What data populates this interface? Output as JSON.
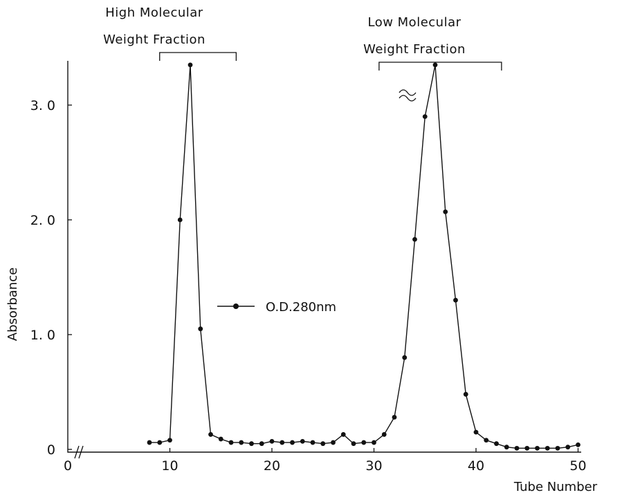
{
  "chart_data": {
    "type": "line",
    "title": "",
    "xlabel": "Tube Number",
    "ylabel": "Absorbance",
    "xlim": [
      0,
      52
    ],
    "ylim": [
      0,
      3.4
    ],
    "x_ticks": [
      0,
      10,
      20,
      30,
      40,
      50
    ],
    "y_ticks": [
      0,
      1.0,
      2.0,
      3.0
    ],
    "x_tick_labels": [
      "0",
      "10",
      "20",
      "30",
      "40",
      "50"
    ],
    "y_tick_labels": [
      "0",
      "1. 0",
      "2. 0",
      "3. 0"
    ],
    "grid": false,
    "legend": {
      "position": "center",
      "entries": [
        "O.D.280nm"
      ]
    },
    "axis_breaks": {
      "x": "between 0 and 10",
      "y_peak": "top of second peak"
    },
    "series": [
      {
        "name": "O.D.280nm",
        "x": [
          8,
          9,
          10,
          11,
          12,
          13,
          14,
          15,
          16,
          17,
          18,
          19,
          20,
          21,
          22,
          23,
          24,
          25,
          26,
          27,
          28,
          29,
          30,
          31,
          32,
          33,
          34,
          35,
          36,
          37,
          38,
          39,
          40,
          41,
          42,
          43,
          44,
          45,
          46,
          47,
          48,
          49,
          50
        ],
        "values": [
          0.06,
          0.06,
          0.08,
          2.0,
          3.35,
          1.05,
          0.13,
          0.09,
          0.06,
          0.06,
          0.05,
          0.05,
          0.07,
          0.06,
          0.06,
          0.07,
          0.06,
          0.05,
          0.06,
          0.13,
          0.05,
          0.06,
          0.06,
          0.13,
          0.28,
          0.8,
          1.83,
          2.9,
          3.35,
          2.07,
          1.3,
          0.48,
          0.15,
          0.08,
          0.05,
          0.02,
          0.01,
          0.01,
          0.01,
          0.01,
          0.01,
          0.02,
          0.04
        ]
      }
    ],
    "annotations": [
      {
        "text_line1": "High Molecular",
        "text_line2": "Weight Fraction",
        "from_x": 9,
        "to_x": 16.5
      },
      {
        "text_line1": "Low Molecular",
        "text_line2": "Weight Fraction",
        "from_x": 30.5,
        "to_x": 42.5
      }
    ]
  }
}
